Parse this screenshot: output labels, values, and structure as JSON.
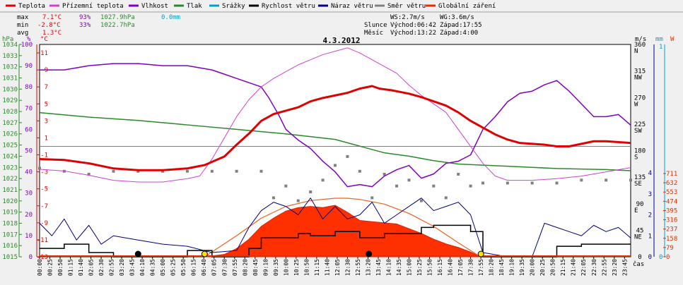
{
  "chart_data": {
    "type": "line",
    "title": "4.3.2012",
    "legend": [
      {
        "label": "Teplota",
        "color": "#e00000"
      },
      {
        "label": "Přízemní teplota",
        "color": "#d040d0"
      },
      {
        "label": "Vlhkost",
        "color": "#8000c0"
      },
      {
        "label": "Tlak",
        "color": "#2a8a2a"
      },
      {
        "label": "Srážky",
        "color": "#00a0d0"
      },
      {
        "label": "Rychlost větru",
        "color": "#000000"
      },
      {
        "label": "Náraz větru",
        "color": "#000080"
      },
      {
        "label": "Směr větru",
        "color": "#808080"
      },
      {
        "label": "Globální záření",
        "color": "#e03000"
      }
    ],
    "stats": {
      "max": {
        "label": "max",
        "temp": "7.1°C",
        "hum": "93%",
        "press": "1027.9hPa",
        "rain": "0.0mm"
      },
      "min": {
        "label": "min",
        "temp": "-2.8°C",
        "hum": "33%",
        "press": "1022.7hPa"
      },
      "avg": {
        "label": "avg",
        "temp": "1.3°C"
      }
    },
    "sun_moon": {
      "ws": "WS:2.7m/s",
      "wg": "WG:3.6m/s",
      "sun_label": "Slunce",
      "sun_rise": "Východ:06:42",
      "sun_set": "Západ:17:55",
      "moon_label": "Měsíc",
      "moon_rise": "Východ:13:22",
      "moon_set": "Západ:4:00"
    },
    "axes": {
      "hpa_unit": "hPa",
      "pct_unit": "%",
      "temp_unit": "°C",
      "wind_unit": "m/s",
      "rain_unit": "mm",
      "rad_unit": "W",
      "hpa_ticks": [
        "1034",
        "1033",
        "1032",
        "1031",
        "1030",
        "1029",
        "1028",
        "1027",
        "1026",
        "1025",
        "1024",
        "1023",
        "1022",
        "1021",
        "1020",
        "1019",
        "1018",
        "1017",
        "1016",
        "1015"
      ],
      "pct_ticks": [
        "100",
        "90",
        "80",
        "70",
        "60",
        "50",
        "40",
        "30",
        "20",
        "10",
        "0"
      ],
      "temp_ticks": [
        "11",
        "9",
        "7",
        "5",
        "3",
        "1",
        "-1",
        "-3",
        "-5",
        "-7",
        "-9",
        "-11",
        "-13"
      ],
      "dir_ticks": [
        "360",
        "N",
        "315",
        "NW",
        "270",
        "W",
        "225",
        "SW",
        "180",
        "S",
        "135",
        "SE",
        "90",
        "E",
        "45",
        "NE",
        "0"
      ],
      "wind_ticks": [
        "4",
        "3",
        "2",
        "1",
        "0"
      ],
      "rain_ticks": [
        "1",
        "0"
      ],
      "rad_ticks": [
        "711",
        "632",
        "553",
        "474",
        "395",
        "316",
        "237",
        "158",
        "79",
        "0"
      ],
      "x_label": "čas",
      "x_ticks": [
        "00:00",
        "00:25",
        "00:50",
        "01:15",
        "01:40",
        "02:05",
        "02:30",
        "02:55",
        "03:20",
        "03:45",
        "04:10",
        "04:35",
        "05:00",
        "05:25",
        "05:50",
        "06:15",
        "06:40",
        "07:05",
        "07:30",
        "07:55",
        "08:20",
        "08:45",
        "09:10",
        "09:35",
        "10:00",
        "10:25",
        "10:50",
        "11:15",
        "11:40",
        "12:05",
        "12:30",
        "12:55",
        "13:20",
        "13:45",
        "14:10",
        "14:35",
        "15:00",
        "15:25",
        "15:50",
        "16:15",
        "16:40",
        "17:05",
        "17:30",
        "17:55",
        "18:20",
        "18:45",
        "19:10",
        "19:35",
        "20:00",
        "20:25",
        "20:50",
        "21:15",
        "21:40",
        "22:05",
        "22:30",
        "22:55",
        "23:20",
        "23:45"
      ]
    },
    "x_range_hours": [
      0,
      24
    ],
    "temp_range": [
      -13,
      12
    ],
    "series": {
      "temperature": {
        "name": "Teplota",
        "t": [
          0,
          1,
          2,
          3,
          4,
          5,
          6,
          6.7,
          7.5,
          8,
          8.5,
          9,
          9.5,
          10,
          10.5,
          11,
          11.5,
          12,
          12.5,
          13,
          13.5,
          13.8,
          14.3,
          15,
          15.5,
          16,
          16.5,
          17,
          17.5,
          18,
          18.5,
          19,
          19.5,
          20,
          20.5,
          21,
          21.5,
          22,
          22.5,
          23,
          24
        ],
        "v": [
          -1.5,
          -1.6,
          -2,
          -2.6,
          -2.8,
          -2.8,
          -2.6,
          -2.2,
          -1.2,
          0.2,
          1.5,
          3,
          3.8,
          4.2,
          4.6,
          5.3,
          5.7,
          6,
          6.3,
          6.8,
          7.1,
          6.8,
          6.6,
          6.2,
          5.8,
          5.3,
          4.8,
          4,
          3,
          2.2,
          1.4,
          0.8,
          0.4,
          0.3,
          0.2,
          0,
          0,
          0.3,
          0.6,
          0.6,
          0.4
        ]
      },
      "ground_temperature": {
        "name": "Přízemní teplota",
        "t": [
          0,
          1,
          2,
          3,
          4,
          5,
          6,
          6.5,
          7,
          7.5,
          8,
          8.5,
          9,
          9.5,
          10,
          10.5,
          11,
          11.5,
          12,
          12.5,
          13,
          13.5,
          14,
          14.5,
          15,
          15.5,
          16,
          16.5,
          17,
          17.5,
          18,
          18.5,
          19,
          20,
          21,
          22,
          23,
          24
        ],
        "v": [
          -2.7,
          -2.9,
          -3.4,
          -4,
          -4.2,
          -4.2,
          -3.8,
          -3.5,
          -1.5,
          1,
          3.5,
          5.5,
          7,
          8,
          8.8,
          9.6,
          10.2,
          10.8,
          11.2,
          11.6,
          11,
          10.2,
          9.4,
          8.6,
          7.2,
          6,
          5,
          4,
          2,
          0,
          -2,
          -3.5,
          -4,
          -4,
          -3.8,
          -3.5,
          -3,
          -2.5
        ]
      },
      "humidity": {
        "name": "Vlhkost",
        "t": [
          0,
          1,
          2,
          3,
          4,
          5,
          6,
          7,
          7.5,
          8,
          8.5,
          9,
          9.3,
          9.7,
          10,
          10.5,
          11,
          11.5,
          12,
          12.5,
          13,
          13.5,
          14,
          14.5,
          15,
          15.5,
          16,
          16.5,
          17,
          17.5,
          18,
          18.5,
          19,
          19.5,
          20,
          20.5,
          21,
          21.5,
          22,
          22.5,
          23,
          23.5,
          24
        ],
        "v": [
          88,
          88,
          90,
          91,
          91,
          90,
          90,
          88,
          86,
          84,
          82,
          80,
          75,
          67,
          60,
          55,
          51,
          45,
          40,
          33,
          34,
          33,
          38,
          41,
          43,
          37,
          39,
          44,
          45,
          48,
          60,
          66,
          73,
          77,
          78,
          81,
          83,
          78,
          72,
          66,
          66,
          67,
          62
        ]
      },
      "pressure": {
        "name": "Tlak",
        "t": [
          0,
          2,
          4,
          6,
          8,
          10,
          12,
          13,
          14,
          15,
          16,
          17,
          18,
          19,
          20,
          21,
          22,
          23,
          24
        ],
        "v": [
          1027.9,
          1027.5,
          1027.2,
          1026.8,
          1026.4,
          1026,
          1025.5,
          1024.9,
          1024.3,
          1024,
          1023.6,
          1023.3,
          1023.2,
          1023.1,
          1023,
          1022.9,
          1022.85,
          1022.8,
          1022.7
        ]
      },
      "solar_radiation": {
        "name": "Globální záření",
        "t": [
          6.7,
          7.5,
          8,
          8.5,
          9,
          9.5,
          10,
          10.5,
          11,
          11.5,
          12,
          12.5,
          13,
          13.5,
          14,
          14.5,
          15,
          15.5,
          16,
          16.5,
          17,
          17.5,
          17.9
        ],
        "v": [
          0,
          20,
          70,
          150,
          260,
          330,
          390,
          420,
          430,
          420,
          440,
          380,
          310,
          300,
          290,
          280,
          240,
          200,
          150,
          110,
          80,
          40,
          0
        ]
      },
      "clear_sky_radiation": {
        "name": "",
        "t": [
          6.7,
          8,
          9,
          10,
          11,
          12,
          12.5,
          13,
          14,
          15,
          16,
          17,
          17.9
        ],
        "v": [
          0,
          180,
          330,
          430,
          480,
          500,
          500,
          490,
          450,
          370,
          260,
          120,
          0
        ]
      },
      "wind_speed": {
        "name": "Rychlost větru",
        "t": [
          0,
          1,
          2,
          3,
          4,
          5,
          6,
          7,
          8,
          8.5,
          9,
          10,
          10.5,
          11,
          12,
          13,
          14,
          15,
          15.5,
          16,
          17,
          17.5,
          18,
          19,
          20,
          21,
          22,
          23,
          24
        ],
        "v": [
          0.4,
          0.6,
          0.2,
          0,
          0,
          0,
          0.3,
          0,
          0,
          0.4,
          0.9,
          0.9,
          1.1,
          1.0,
          1.2,
          0.9,
          1.1,
          1.1,
          1.4,
          1.5,
          1.5,
          1.2,
          0,
          0,
          0,
          0.5,
          0.6,
          0.6,
          0.6
        ]
      },
      "wind_gust": {
        "name": "Náraz větru",
        "t": [
          0,
          0.5,
          1,
          1.5,
          2,
          2.5,
          3,
          4,
          5,
          6,
          7,
          8,
          8.5,
          9,
          9.5,
          10,
          10.5,
          11,
          11.5,
          12,
          12.5,
          13,
          13.5,
          14,
          14.5,
          15,
          15.5,
          16,
          16.5,
          17,
          17.5,
          18,
          19,
          20,
          20.5,
          21,
          21.5,
          22,
          22.5,
          23,
          23.5,
          24
        ],
        "v": [
          1.6,
          1.0,
          1.8,
          0.8,
          1.5,
          0.6,
          1.0,
          0.8,
          0.6,
          0.5,
          0.2,
          0.3,
          1.4,
          2.2,
          2.6,
          2.4,
          2.0,
          2.8,
          1.8,
          2.4,
          1.8,
          2.0,
          2.6,
          1.6,
          2.0,
          2.4,
          2.8,
          2.2,
          2.4,
          2.6,
          2.0,
          0.2,
          0.0,
          0.0,
          1.6,
          1.4,
          1.2,
          1.0,
          1.5,
          1.2,
          1.4,
          0.9
        ]
      },
      "wind_direction": {
        "name": "Směr větru",
        "t": [
          0,
          1,
          2,
          3,
          4,
          5,
          6,
          7,
          8,
          9,
          9.5,
          10,
          10.5,
          11,
          11.5,
          12,
          12.5,
          13,
          13.5,
          14,
          14.5,
          15,
          15.5,
          16,
          16.5,
          17,
          17.5,
          18,
          19,
          20,
          21,
          22,
          23,
          24
        ],
        "v": [
          150,
          145,
          140,
          145,
          145,
          145,
          145,
          145,
          145,
          145,
          100,
          120,
          95,
          110,
          130,
          155,
          170,
          145,
          100,
          140,
          120,
          130,
          95,
          120,
          100,
          140,
          120,
          125,
          125,
          125,
          125,
          130,
          130,
          130
        ]
      }
    },
    "markers": [
      {
        "label": "moonset",
        "time": "04:00",
        "t": 4.0,
        "color": "#000000"
      },
      {
        "label": "sunrise",
        "time": "06:42",
        "t": 6.7,
        "color": "#ffe000"
      },
      {
        "label": "moonrise",
        "time": "13:22",
        "t": 13.37,
        "color": "#000000"
      },
      {
        "label": "sunset",
        "time": "17:55",
        "t": 17.92,
        "color": "#ffe000"
      }
    ]
  }
}
